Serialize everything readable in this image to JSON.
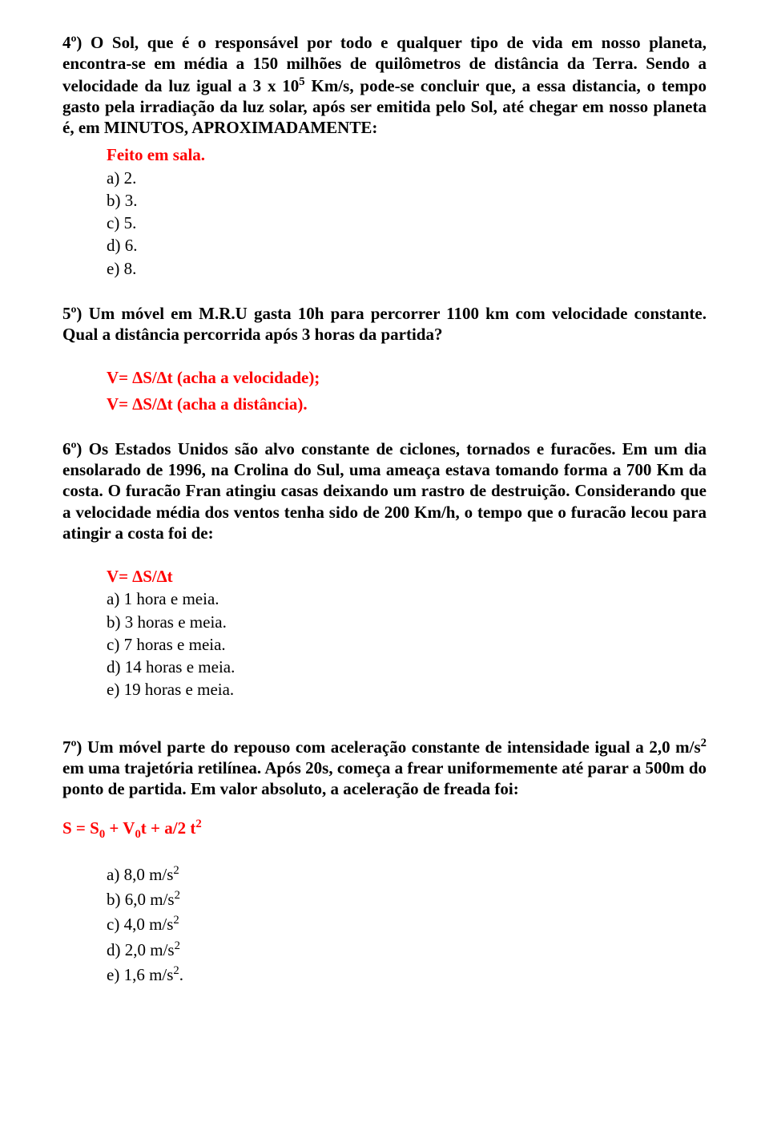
{
  "q4": {
    "text": "4º) O Sol, que é o responsável por todo e qualquer tipo de vida em nosso planeta, encontra-se em média a 150 milhões de quilômetros de distância da Terra. Sendo a velocidade da luz igual a 3 x 10",
    "exp": "5",
    "text2": " Km/s, pode-se concluir que, a essa distancia, o tempo gasto pela irradiação da luz solar, após ser emitida pelo Sol, até chegar em nosso planeta é, em MINUTOS, APROXIMADAMENTE:",
    "note": "Feito em sala.",
    "opts": {
      "a": "a)   2.",
      "b": "b)   3.",
      "c": "c)   5.",
      "d": "d)   6.",
      "e": "e)   8."
    }
  },
  "q5": {
    "text": "5º) Um móvel em M.R.U gasta 10h para percorrer 1100 km com velocidade constante. Qual a distância percorrida após 3 horas da partida?",
    "note1": "V= ∆S/∆t (acha a velocidade);",
    "note2": "V= ∆S/∆t (acha a distância)."
  },
  "q6": {
    "text": "6º) Os Estados Unidos são alvo constante de ciclones, tornados e furacões. Em um dia ensolarado de 1996, na Crolina do Sul, uma ameaça estava tomando forma a 700 Km da costa. O furacão Fran atingiu casas deixando um rastro de destruição. Considerando que a velocidade média dos ventos tenha sido de 200 Km/h, o tempo que o furacão lecou para atingir a costa foi de:",
    "note": "V= ∆S/∆t",
    "opts": {
      "a": "a)   1 hora e meia.",
      "b": "b)   3 horas e meia.",
      "c": "c)   7 horas e meia.",
      "d": "d)   14 horas e meia.",
      "e": "e)   19 horas e meia."
    }
  },
  "q7": {
    "text1": "7º) Um móvel parte do repouso com aceleração constante de intensidade igual a 2,0 m/s",
    "exp1": "2 ",
    "text2": "em uma trajetória retilínea. Após 20s, começa a frear uniformemente até parar a 500m do ponto de partida. Em valor absoluto, a aceleração de freada foi:",
    "formula_pre": "S = S",
    "formula_sub1": "0",
    "formula_mid": " + V",
    "formula_sub2": "0",
    "formula_mid2": "t + a/2 t",
    "formula_exp": "2",
    "opts": {
      "a_pre": "a) 8,0 m/s",
      "a_exp": "2",
      "b_pre": "b) 6,0 m/s",
      "b_exp": "2",
      "c_pre": "c) 4,0 m/s",
      "c_exp": "2",
      "d_pre": "d) 2,0 m/s",
      "d_exp": "2",
      "e_pre": "e) 1,6 m/s",
      "e_exp": "2",
      "e_post": "."
    }
  }
}
